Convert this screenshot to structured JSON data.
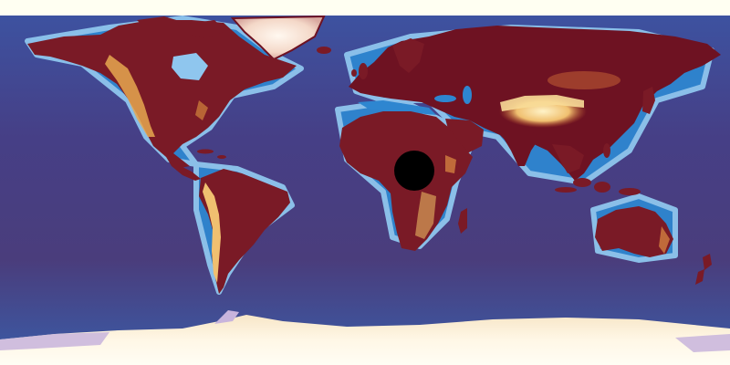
{
  "map": {
    "projection": "equirectangular",
    "colors": {
      "page_background": "#fffff2",
      "ocean_deep": "#4a3d7c",
      "ocean_mid": "#3a5ca8",
      "ocean_shallow": "#2e86d0",
      "shelf": "#8fc6ee",
      "land_low": "#6e1222",
      "land_mid": "#8a2424",
      "land_high": "#e0a24a",
      "land_peak": "#fff0b8",
      "ice": "#fff6e6",
      "ice_shadow": "#c8b4dc",
      "marker": "#000000"
    },
    "marker": {
      "shape": "filled-circle",
      "color": "#000000"
    }
  }
}
